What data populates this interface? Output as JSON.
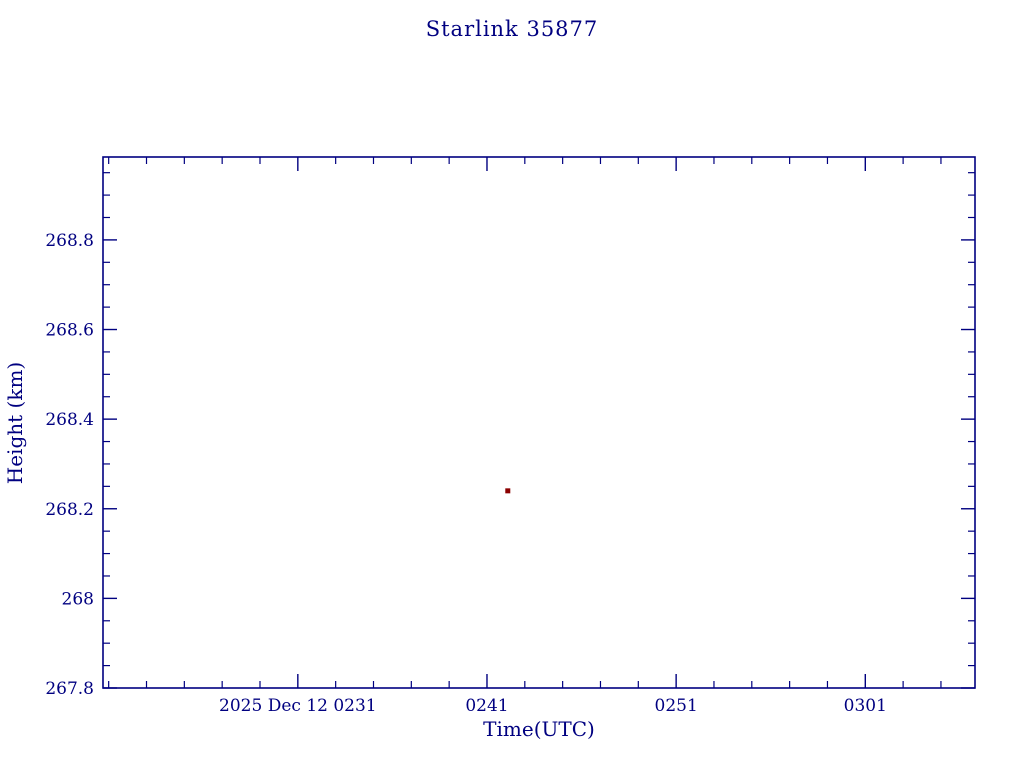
{
  "chart_data": {
    "type": "scatter",
    "title": "Starlink 35877",
    "xlabel": "Time(UTC)",
    "ylabel": "Height (km)",
    "x_unit": "minutes_after_midnight_utc",
    "xlim": [
      140.7,
      186.8
    ],
    "ylim": [
      267.8,
      268.985
    ],
    "x_major_ticks": [
      {
        "value": 151,
        "label": "2025 Dec 12  0231"
      },
      {
        "value": 161,
        "label": "0241"
      },
      {
        "value": 171,
        "label": "0251"
      },
      {
        "value": 181,
        "label": "0301"
      }
    ],
    "x_minor_step_minutes": 2,
    "y_major_ticks": [
      {
        "value": 267.8,
        "label": "267.8"
      },
      {
        "value": 268.0,
        "label": "268"
      },
      {
        "value": 268.2,
        "label": "268.2"
      },
      {
        "value": 268.4,
        "label": "268.4"
      },
      {
        "value": 268.6,
        "label": "268.6"
      },
      {
        "value": 268.8,
        "label": "268.8"
      }
    ],
    "y_minor_step": 0.05,
    "points": [
      {
        "x": 162.1,
        "y": 268.24,
        "time_label": "0242",
        "height_km": 268.24
      }
    ],
    "marker": {
      "shape": "square",
      "size": 5,
      "color": "#8B0000"
    },
    "colors": {
      "axis": "#000080",
      "text": "#000080",
      "background": "#ffffff"
    },
    "grid": false,
    "legend": null
  }
}
